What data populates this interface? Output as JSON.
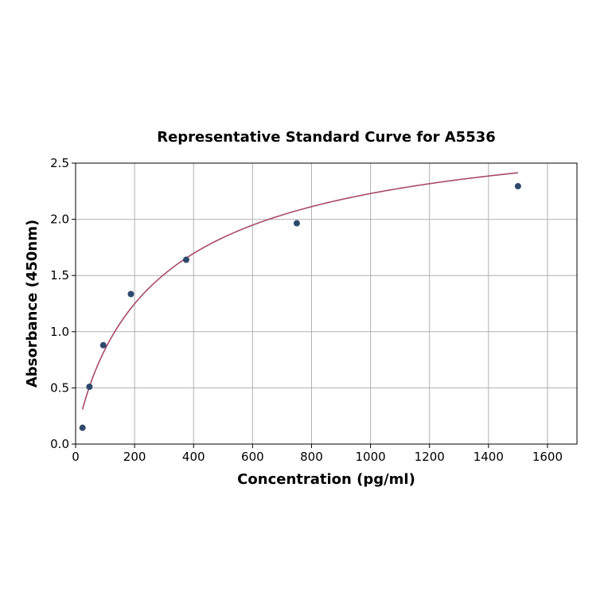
{
  "chart_data": {
    "type": "scatter",
    "title": "Representative Standard Curve for A5536",
    "xlabel": "Concentration (pg/ml)",
    "ylabel": "Absorbance (450nm)",
    "xlim": [
      0,
      1700
    ],
    "ylim": [
      0,
      2.5
    ],
    "xticks": [
      0,
      200,
      400,
      600,
      800,
      1000,
      1200,
      1400,
      1600
    ],
    "yticks": [
      0.0,
      0.5,
      1.0,
      1.5,
      2.0,
      2.5
    ],
    "xtick_labels": [
      "0",
      "200",
      "400",
      "600",
      "800",
      "1000",
      "1200",
      "1400",
      "1600"
    ],
    "ytick_labels": [
      "0.0",
      "0.5",
      "1.0",
      "1.5",
      "2.0",
      "2.5"
    ],
    "grid": true,
    "series": [
      {
        "type": "scatter",
        "x": [
          23.4,
          46.9,
          93.8,
          187.5,
          375,
          750,
          1500
        ],
        "y": [
          0.145,
          0.51,
          0.88,
          1.335,
          1.64,
          1.965,
          2.295
        ],
        "color": "#2e4a6b"
      },
      {
        "type": "line",
        "fit": "4PL",
        "params": {
          "A": 0.02,
          "B": 0.875,
          "C": 300,
          "D": 3.0
        },
        "x_range": [
          23.4,
          1500
        ],
        "color": "#a84a6a"
      }
    ]
  }
}
